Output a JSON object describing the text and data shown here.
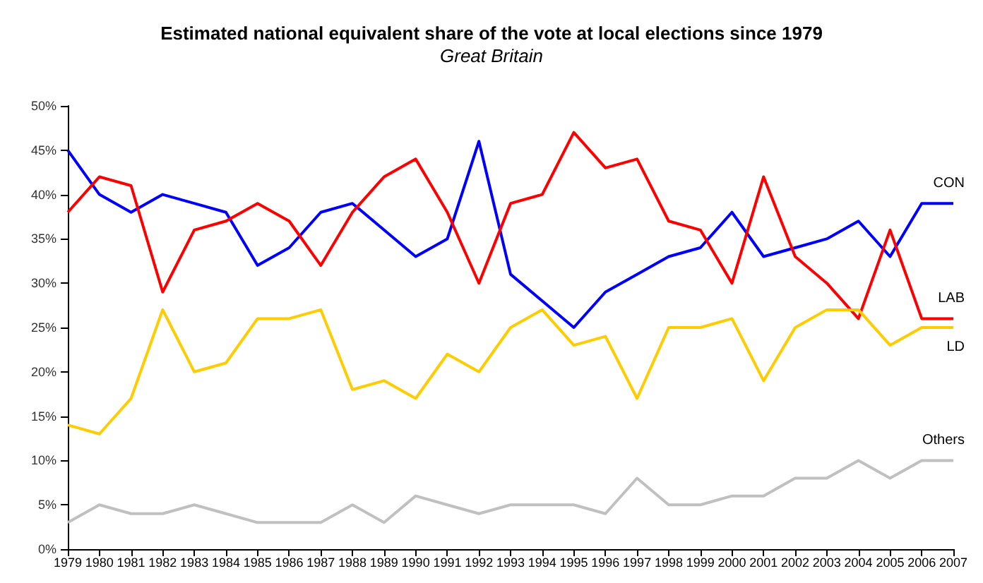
{
  "chart_data": {
    "type": "line",
    "title": "Estimated national equivalent share of the vote at local elections since 1979",
    "subtitle": "Great Britain",
    "categories": [
      "1979",
      "1980",
      "1981",
      "1982",
      "1983",
      "1984",
      "1985",
      "1986",
      "1987",
      "1988",
      "1989",
      "1990",
      "1991",
      "1992",
      "1993",
      "1994",
      "1995",
      "1996",
      "1997",
      "1998",
      "1999",
      "2000",
      "2001",
      "2002",
      "2003",
      "2004",
      "2005",
      "2006",
      "2007"
    ],
    "series": [
      {
        "name": "CON",
        "color": "#0000ff",
        "values": [
          45,
          40,
          38,
          40,
          39,
          38,
          32,
          34,
          38,
          39,
          36,
          33,
          35,
          46,
          31,
          28,
          25,
          29,
          31,
          33,
          34,
          38,
          33,
          34,
          35,
          37,
          33,
          39,
          39
        ]
      },
      {
        "name": "LAB",
        "color": "#ff0000",
        "values": [
          38,
          42,
          41,
          29,
          36,
          37,
          39,
          37,
          32,
          38,
          42,
          44,
          38,
          30,
          39,
          40,
          47,
          43,
          44,
          37,
          36,
          30,
          42,
          33,
          30,
          26,
          36,
          26,
          26
        ]
      },
      {
        "name": "LD",
        "color": "#ffcc00",
        "values": [
          14,
          13,
          17,
          27,
          20,
          21,
          26,
          26,
          27,
          18,
          19,
          17,
          22,
          20,
          25,
          27,
          23,
          24,
          17,
          25,
          25,
          26,
          19,
          25,
          27,
          27,
          23,
          25,
          25
        ]
      },
      {
        "name": "Others",
        "color": "#c0c0c0",
        "values": [
          3,
          5,
          4,
          4,
          5,
          4,
          3,
          3,
          3,
          5,
          3,
          6,
          5,
          4,
          5,
          5,
          5,
          4,
          8,
          5,
          5,
          6,
          6,
          8,
          8,
          10,
          8,
          10,
          10
        ]
      }
    ],
    "ylim": [
      0,
      50
    ],
    "yticks": [
      {
        "value": 0,
        "label": "0%"
      },
      {
        "value": 5,
        "label": "5%"
      },
      {
        "value": 10,
        "label": "10%"
      },
      {
        "value": 15,
        "label": "15%"
      },
      {
        "value": 20,
        "label": "20%"
      },
      {
        "value": 25,
        "label": "25%"
      },
      {
        "value": 30,
        "label": "30%"
      },
      {
        "value": 35,
        "label": "35%"
      },
      {
        "value": 40,
        "label": "40%"
      },
      {
        "value": 45,
        "label": "45%"
      },
      {
        "value": 50,
        "label": "50%"
      }
    ],
    "grid": false,
    "legend": false,
    "marker": "none",
    "line_style": "solid"
  }
}
